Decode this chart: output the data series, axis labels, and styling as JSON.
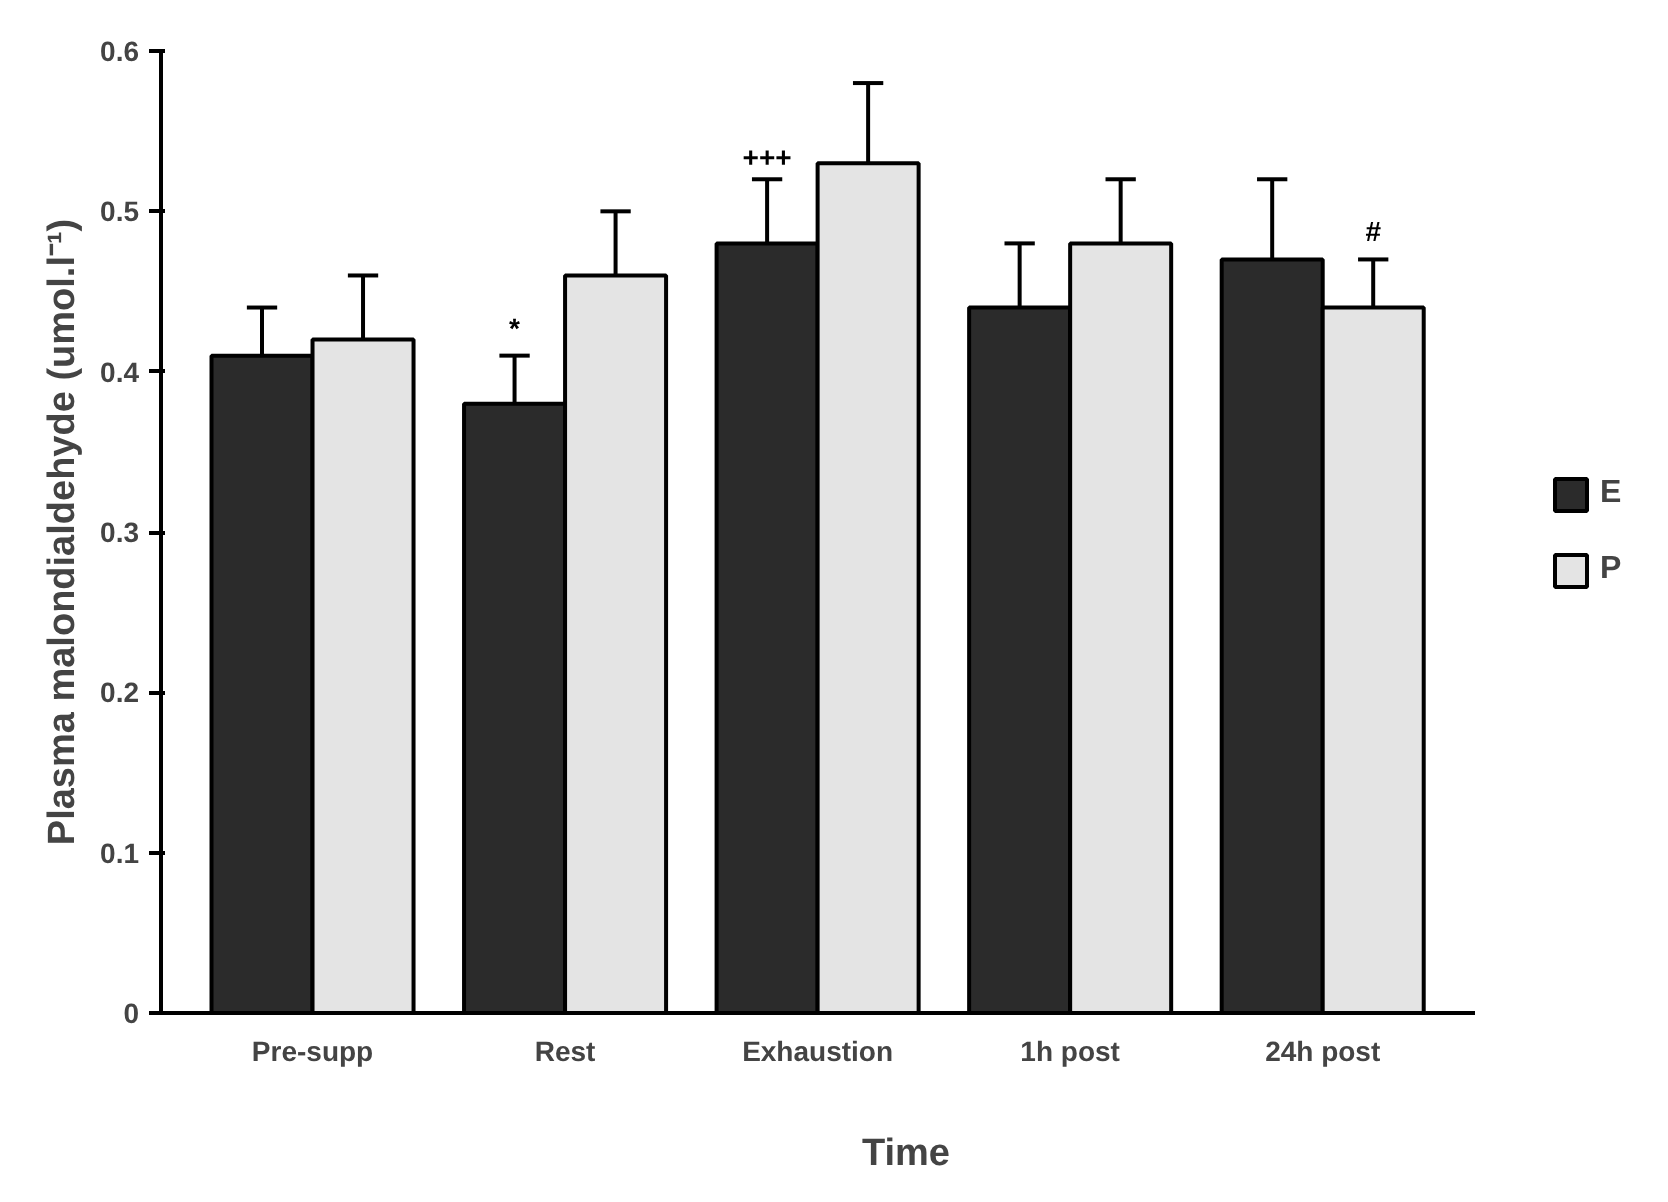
{
  "chart_data": {
    "type": "bar",
    "xlabel": "Time",
    "ylabel": "Plasma malondialdehyde (umol.l⁻¹)",
    "categories": [
      "Pre-supp",
      "Rest",
      "Exhaustion",
      "1h post",
      "24h post"
    ],
    "series": [
      {
        "name": "E",
        "color": "#2b2b2b",
        "values": [
          0.41,
          0.38,
          0.48,
          0.44,
          0.47
        ],
        "errors": [
          [
            0.41,
            0.44
          ],
          [
            0.38,
            0.41
          ],
          [
            0.48,
            0.52
          ],
          [
            0.44,
            0.48
          ],
          [
            0.47,
            0.52
          ]
        ]
      },
      {
        "name": "P",
        "color": "#e4e4e4",
        "values": [
          0.42,
          0.46,
          0.53,
          0.48,
          0.44
        ],
        "errors": [
          [
            0.42,
            0.46
          ],
          [
            0.46,
            0.5
          ],
          [
            0.53,
            0.58
          ],
          [
            0.48,
            0.52
          ],
          [
            0.44,
            0.47
          ]
        ]
      }
    ],
    "annotations": [
      {
        "text": "*",
        "x": "Rest",
        "y": 0.41
      },
      {
        "text": "+++",
        "x": "Exhaustion",
        "y": 0.52
      },
      {
        "text": "#",
        "x": "24h post",
        "y": 0.47
      }
    ],
    "ylim": [
      0,
      0.6
    ],
    "yticks": [
      0,
      0.1,
      0.2,
      0.3,
      0.4,
      0.5,
      0.6
    ],
    "grid": false,
    "legend": "right"
  }
}
